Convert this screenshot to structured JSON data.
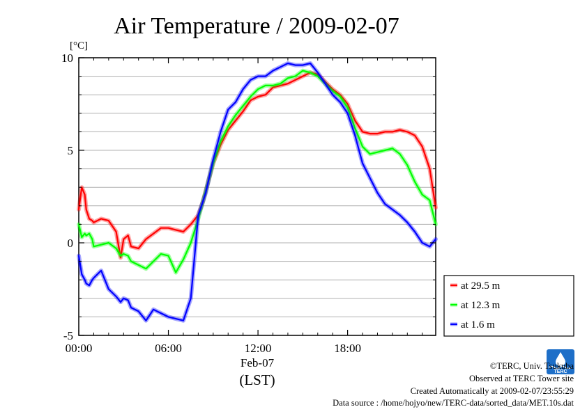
{
  "chart_data": {
    "type": "line",
    "title": "Air Temperature / 2009-02-07",
    "ylabel": "[°C]",
    "xlabel": "(LST)",
    "date_label": "Feb-07",
    "xlim": [
      0,
      23.9
    ],
    "ylim": [
      -5,
      10
    ],
    "x_tick_values": [
      0,
      6,
      12,
      18
    ],
    "x_tick_labels": [
      "00:00",
      "06:00",
      "12:00",
      "18:00"
    ],
    "y_tick_values": [
      -5,
      0,
      5,
      10
    ],
    "y_tick_labels": [
      "-5",
      "0",
      "5",
      "10"
    ],
    "grid": true,
    "legend_position": "right",
    "x": [
      0,
      0.2,
      0.4,
      0.5,
      0.7,
      0.9,
      1,
      1.5,
      2,
      2.5,
      2.8,
      3,
      3.3,
      3.5,
      4,
      4.5,
      5,
      5.5,
      6,
      6.5,
      7,
      7.5,
      8,
      8.3,
      8.5,
      9,
      9.5,
      10,
      10.5,
      11,
      11.5,
      12,
      12.5,
      13,
      13.5,
      14,
      14.5,
      15,
      15.5,
      16,
      16.5,
      17,
      17.5,
      18,
      18.5,
      19,
      19.5,
      20,
      20.5,
      21,
      21.5,
      22,
      22.5,
      23,
      23.5,
      23.9
    ],
    "series": [
      {
        "name": "at 29.5 m",
        "color": "#ff0000",
        "values": [
          1.8,
          3.0,
          2.6,
          1.8,
          1.3,
          1.2,
          1.1,
          1.3,
          1.2,
          0.6,
          -0.8,
          0.2,
          0.4,
          -0.2,
          -0.3,
          0.2,
          0.5,
          0.8,
          0.8,
          0.7,
          0.6,
          1.0,
          1.5,
          2.2,
          2.8,
          4.3,
          5.3,
          6.1,
          6.6,
          7.1,
          7.7,
          7.9,
          8.0,
          8.4,
          8.5,
          8.6,
          8.8,
          9.0,
          9.2,
          9.1,
          8.7,
          8.3,
          8.0,
          7.5,
          6.6,
          6.0,
          5.9,
          5.9,
          6.0,
          6.0,
          6.1,
          6.0,
          5.8,
          5.2,
          4.0,
          1.9
        ]
      },
      {
        "name": "at 12.3 m",
        "color": "#00ff00",
        "values": [
          1.0,
          0.3,
          0.5,
          0.4,
          0.5,
          0.2,
          -0.2,
          -0.1,
          0.0,
          -0.3,
          -0.7,
          -0.6,
          -0.7,
          -1.0,
          -1.2,
          -1.4,
          -1.0,
          -0.6,
          -0.7,
          -1.6,
          -0.9,
          0.0,
          1.3,
          2.2,
          2.8,
          4.3,
          5.5,
          6.3,
          6.9,
          7.4,
          7.9,
          8.3,
          8.5,
          8.5,
          8.6,
          8.9,
          9.0,
          9.3,
          9.2,
          9.0,
          8.6,
          8.2,
          7.9,
          7.3,
          6.2,
          5.2,
          4.8,
          4.9,
          5.0,
          5.1,
          4.8,
          4.2,
          3.3,
          2.6,
          2.3,
          1.0
        ]
      },
      {
        "name": "at 1.6 m",
        "color": "#0000ff",
        "values": [
          -0.7,
          -1.7,
          -2.0,
          -2.2,
          -2.3,
          -2.0,
          -1.9,
          -1.5,
          -2.5,
          -2.9,
          -3.2,
          -3.0,
          -3.1,
          -3.5,
          -3.7,
          -4.2,
          -3.6,
          -3.8,
          -4.0,
          -4.1,
          -4.2,
          -3.0,
          1.5,
          2.2,
          2.7,
          4.5,
          6.0,
          7.2,
          7.6,
          8.3,
          8.8,
          9.0,
          9.0,
          9.3,
          9.5,
          9.7,
          9.6,
          9.6,
          9.7,
          9.2,
          8.6,
          8.0,
          7.6,
          7.0,
          5.8,
          4.3,
          3.5,
          2.7,
          2.1,
          1.8,
          1.5,
          1.1,
          0.6,
          0.0,
          -0.2,
          0.2
        ]
      }
    ]
  },
  "footer": {
    "copyright": "©TERC, Univ. Tsukuba",
    "observed": "Observed at TERC Tower site",
    "created": "Created Automatically at 2009-02-07/23:55:29",
    "source": "Data source : /home/hojyo/new/TERC-data/sorted_data/MET.10s.dat"
  },
  "logo": {
    "text": "TERC",
    "color": "#1e6fc8"
  }
}
